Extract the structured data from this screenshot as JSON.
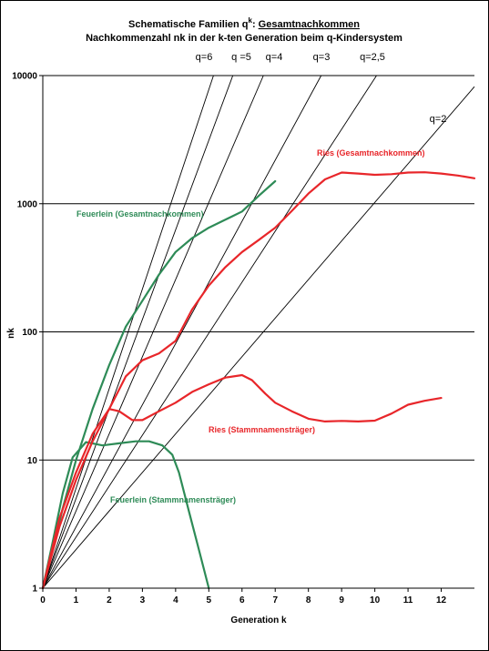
{
  "chart_data": {
    "type": "line",
    "title_prefix": "Schematische Familien q",
    "title_superscript": "k",
    "title_separator": ": ",
    "title_underlined": "Gesamtnachkommen",
    "subtitle": "Nachkommenzahl  nk in der k-ten Generation beim q-Kindersystem",
    "xlabel": "Generation k",
    "ylabel": "nk",
    "xlim": [
      0,
      13
    ],
    "ylim": [
      1,
      10000
    ],
    "yscale": "log",
    "x_ticks": [
      0,
      1,
      2,
      3,
      4,
      5,
      6,
      7,
      8,
      9,
      10,
      11,
      12
    ],
    "x_tick_labels": [
      "0",
      "1",
      "2",
      "3",
      "4",
      "5",
      "6",
      "7",
      "8",
      "9",
      "10",
      "11",
      "12"
    ],
    "y_ticks": [
      1,
      10,
      100,
      1000,
      10000
    ],
    "y_tick_labels": [
      "1",
      "10",
      "100",
      "1000",
      "10000"
    ],
    "grid": "horizontal",
    "q_lines": [
      {
        "q": 6,
        "label": "q=6"
      },
      {
        "q": 5,
        "label": "q =5"
      },
      {
        "q": 4,
        "label": "q=4"
      },
      {
        "q": 3,
        "label": "q=3"
      },
      {
        "q": 2.5,
        "label": "q=2,5"
      },
      {
        "q": 2,
        "label": "q=2"
      }
    ],
    "series": [
      {
        "name": "Feuerlein (Gesamtnachkommen)",
        "color": "#2e8b57",
        "points": [
          [
            0,
            1
          ],
          [
            0.3,
            2
          ],
          [
            0.6,
            4.2
          ],
          [
            1,
            10
          ],
          [
            1.5,
            25
          ],
          [
            2,
            55
          ],
          [
            2.5,
            110
          ],
          [
            3,
            175
          ],
          [
            3.5,
            280
          ],
          [
            4,
            420
          ],
          [
            4.5,
            540
          ],
          [
            5,
            650
          ],
          [
            5.5,
            750
          ],
          [
            6,
            870
          ],
          [
            6.5,
            1150
          ],
          [
            7,
            1500
          ]
        ]
      },
      {
        "name": "Feuerlein (Stammnamensträger)",
        "color": "#2e8b57",
        "points": [
          [
            0,
            1
          ],
          [
            0.3,
            2.3
          ],
          [
            0.6,
            5.5
          ],
          [
            0.9,
            10.5
          ],
          [
            1.3,
            13.8
          ],
          [
            1.8,
            13
          ],
          [
            2.3,
            13.5
          ],
          [
            2.8,
            14
          ],
          [
            3.2,
            14
          ],
          [
            3.6,
            13
          ],
          [
            3.9,
            11
          ],
          [
            4.1,
            8
          ],
          [
            4.4,
            4
          ],
          [
            4.7,
            2
          ],
          [
            5,
            1
          ]
        ]
      }
    ],
    "series_ries": [
      {
        "name": "Ries (Gesamtnachkommen)",
        "color": "#e8262a",
        "points": [
          [
            0,
            1
          ],
          [
            0.5,
            3
          ],
          [
            1,
            7
          ],
          [
            1.5,
            14
          ],
          [
            2,
            25
          ],
          [
            2.5,
            45
          ],
          [
            3,
            60
          ],
          [
            3.5,
            68
          ],
          [
            4,
            85
          ],
          [
            4.5,
            150
          ],
          [
            5,
            230
          ],
          [
            5.5,
            320
          ],
          [
            6,
            420
          ],
          [
            6.5,
            520
          ],
          [
            7,
            650
          ],
          [
            7.5,
            880
          ],
          [
            8,
            1200
          ],
          [
            8.5,
            1550
          ],
          [
            9,
            1750
          ],
          [
            9.5,
            1720
          ],
          [
            10,
            1680
          ],
          [
            10.5,
            1700
          ],
          [
            11,
            1750
          ],
          [
            11.5,
            1760
          ],
          [
            12,
            1720
          ],
          [
            12.5,
            1660
          ],
          [
            13,
            1580
          ]
        ]
      },
      {
        "name": "Ries (Stammnamensträger)",
        "color": "#e8262a",
        "points": [
          [
            0,
            1
          ],
          [
            0.5,
            3.5
          ],
          [
            1,
            8
          ],
          [
            1.5,
            16
          ],
          [
            2,
            25
          ],
          [
            2.3,
            24
          ],
          [
            2.7,
            20.5
          ],
          [
            3,
            20.5
          ],
          [
            3.5,
            24
          ],
          [
            4,
            28
          ],
          [
            4.5,
            34
          ],
          [
            5,
            39
          ],
          [
            5.5,
            44
          ],
          [
            6,
            46
          ],
          [
            6.3,
            42
          ],
          [
            6.7,
            33
          ],
          [
            7,
            28
          ],
          [
            7.5,
            24
          ],
          [
            8,
            21
          ],
          [
            8.5,
            20
          ],
          [
            9,
            20.2
          ],
          [
            9.5,
            20
          ],
          [
            10,
            20.3
          ],
          [
            10.5,
            23
          ],
          [
            11,
            27
          ],
          [
            11.5,
            29
          ],
          [
            12,
            30.5
          ]
        ]
      }
    ],
    "annotations": [
      {
        "text": "Feuerlein (Gesamtnachkommen)",
        "color": "#2e8b57"
      },
      {
        "text": "Ries (Gesamtnachkommen)",
        "color": "#e8262a"
      },
      {
        "text": "Ries (Stammnamensträger)",
        "color": "#e8262a"
      },
      {
        "text": "Feuerlein (Stammnamensträger)",
        "color": "#2e8b57"
      }
    ]
  }
}
